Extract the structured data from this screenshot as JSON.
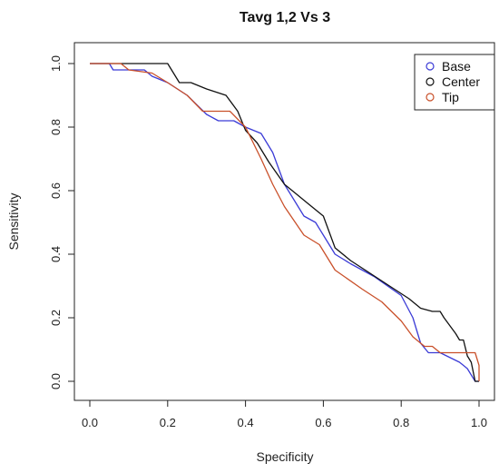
{
  "chart_data": {
    "type": "line",
    "title": "Tavg 1,2 Vs 3",
    "xlabel": "Specificity",
    "ylabel": "Sensitivity",
    "xlim": [
      0.0,
      1.0
    ],
    "ylim": [
      0.0,
      1.0
    ],
    "x_ticks": [
      "0.0",
      "0.2",
      "0.4",
      "0.6",
      "0.8",
      "1.0"
    ],
    "y_ticks": [
      "0.0",
      "0.2",
      "0.4",
      "0.6",
      "0.8",
      "1.0"
    ],
    "grid": false,
    "legend_position": "top-right",
    "series": [
      {
        "name": "Base",
        "color": "#3b3bd6",
        "points": [
          [
            0.0,
            1.0
          ],
          [
            0.05,
            1.0
          ],
          [
            0.06,
            0.98
          ],
          [
            0.14,
            0.98
          ],
          [
            0.16,
            0.96
          ],
          [
            0.2,
            0.94
          ],
          [
            0.25,
            0.9
          ],
          [
            0.3,
            0.84
          ],
          [
            0.33,
            0.82
          ],
          [
            0.37,
            0.82
          ],
          [
            0.4,
            0.8
          ],
          [
            0.44,
            0.78
          ],
          [
            0.47,
            0.72
          ],
          [
            0.5,
            0.62
          ],
          [
            0.55,
            0.52
          ],
          [
            0.58,
            0.5
          ],
          [
            0.6,
            0.46
          ],
          [
            0.63,
            0.4
          ],
          [
            0.67,
            0.37
          ],
          [
            0.73,
            0.33
          ],
          [
            0.8,
            0.27
          ],
          [
            0.83,
            0.2
          ],
          [
            0.85,
            0.12
          ],
          [
            0.87,
            0.09
          ],
          [
            0.9,
            0.09
          ],
          [
            0.95,
            0.06
          ],
          [
            0.97,
            0.04
          ],
          [
            0.98,
            0.02
          ],
          [
            0.99,
            0.0
          ],
          [
            1.0,
            0.0
          ]
        ]
      },
      {
        "name": "Center",
        "color": "#111111",
        "points": [
          [
            0.0,
            1.0
          ],
          [
            0.2,
            1.0
          ],
          [
            0.23,
            0.94
          ],
          [
            0.26,
            0.94
          ],
          [
            0.3,
            0.92
          ],
          [
            0.35,
            0.9
          ],
          [
            0.38,
            0.85
          ],
          [
            0.4,
            0.79
          ],
          [
            0.43,
            0.75
          ],
          [
            0.46,
            0.69
          ],
          [
            0.5,
            0.62
          ],
          [
            0.53,
            0.59
          ],
          [
            0.56,
            0.56
          ],
          [
            0.6,
            0.52
          ],
          [
            0.63,
            0.42
          ],
          [
            0.67,
            0.38
          ],
          [
            0.72,
            0.34
          ],
          [
            0.77,
            0.3
          ],
          [
            0.82,
            0.26
          ],
          [
            0.85,
            0.23
          ],
          [
            0.88,
            0.22
          ],
          [
            0.9,
            0.22
          ],
          [
            0.91,
            0.2
          ],
          [
            0.94,
            0.15
          ],
          [
            0.95,
            0.13
          ],
          [
            0.96,
            0.13
          ],
          [
            0.97,
            0.08
          ],
          [
            0.98,
            0.06
          ],
          [
            0.99,
            0.0
          ],
          [
            1.0,
            0.0
          ]
        ]
      },
      {
        "name": "Tip",
        "color": "#c9502a",
        "points": [
          [
            0.0,
            1.0
          ],
          [
            0.08,
            1.0
          ],
          [
            0.1,
            0.98
          ],
          [
            0.16,
            0.97
          ],
          [
            0.2,
            0.94
          ],
          [
            0.25,
            0.9
          ],
          [
            0.29,
            0.85
          ],
          [
            0.36,
            0.85
          ],
          [
            0.4,
            0.8
          ],
          [
            0.44,
            0.7
          ],
          [
            0.47,
            0.62
          ],
          [
            0.5,
            0.55
          ],
          [
            0.55,
            0.46
          ],
          [
            0.59,
            0.43
          ],
          [
            0.63,
            0.35
          ],
          [
            0.7,
            0.29
          ],
          [
            0.75,
            0.25
          ],
          [
            0.8,
            0.19
          ],
          [
            0.83,
            0.14
          ],
          [
            0.86,
            0.11
          ],
          [
            0.88,
            0.11
          ],
          [
            0.9,
            0.09
          ],
          [
            0.95,
            0.09
          ],
          [
            0.99,
            0.09
          ],
          [
            1.0,
            0.05
          ],
          [
            1.0,
            0.0
          ]
        ]
      }
    ]
  }
}
